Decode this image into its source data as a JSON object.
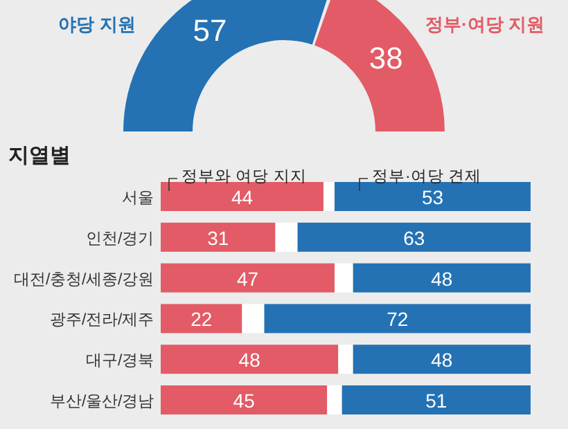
{
  "chart_data": [
    {
      "type": "donut",
      "categories": [
        "야당 지원",
        "정부·여당 지원"
      ],
      "values": [
        57,
        38
      ],
      "colors": [
        "#2472b4",
        "#e25b66"
      ],
      "data_labels": true
    },
    {
      "type": "bar",
      "title": "지열별",
      "orientation": "horizontal",
      "categories": [
        "서울",
        "인천/경기",
        "대전/충청/세종/강원",
        "광주/전라/제주",
        "대구/경북",
        "부산/울산/경남"
      ],
      "series": [
        {
          "name": "정부와 여당 지지",
          "color": "#e25b66",
          "values": [
            44,
            31,
            47,
            22,
            48,
            45
          ],
          "value_labels": [
            "44",
            "31",
            "47",
            "22",
            "48",
            "45"
          ]
        },
        {
          "color": "#ffffff",
          "values": [
            3,
            6,
            5,
            6,
            4,
            4
          ]
        },
        {
          "name": "정부·여당 견제",
          "color": "#2472b4",
          "values": [
            53,
            63,
            48,
            72,
            48,
            51
          ],
          "value_labels": [
            "53",
            "63",
            "48",
            "72",
            "48",
            "51"
          ]
        }
      ],
      "stacked": true,
      "xlim": [
        0,
        100
      ],
      "tick_labels": "y",
      "legend": "top"
    }
  ]
}
